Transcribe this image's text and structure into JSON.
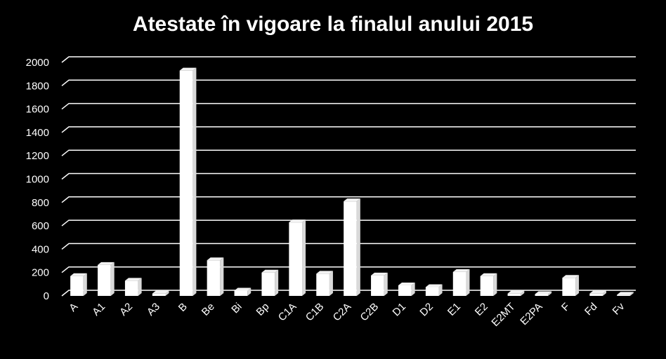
{
  "chart_data": {
    "type": "bar",
    "title": "Atestate în vigoare la finalul anului 2015",
    "xlabel": "",
    "ylabel": "",
    "ylim": [
      0,
      2000
    ],
    "yticks": [
      0,
      200,
      400,
      600,
      800,
      1000,
      1200,
      1400,
      1600,
      1800,
      2000
    ],
    "grid": true,
    "legend": "none",
    "bar_color": "#ffffff",
    "background": "#000000",
    "categories": [
      "A",
      "A1",
      "A2",
      "A3",
      "B",
      "Be",
      "Bi",
      "Bp",
      "C1A",
      "C1B",
      "C2A",
      "C2B",
      "D1",
      "D2",
      "E1",
      "E2",
      "E2MT",
      "E2PA",
      "F",
      "Fd",
      "Fv"
    ],
    "values": [
      170,
      265,
      130,
      20,
      1930,
      305,
      45,
      200,
      630,
      190,
      810,
      175,
      90,
      75,
      205,
      170,
      20,
      15,
      155,
      20,
      10
    ]
  }
}
